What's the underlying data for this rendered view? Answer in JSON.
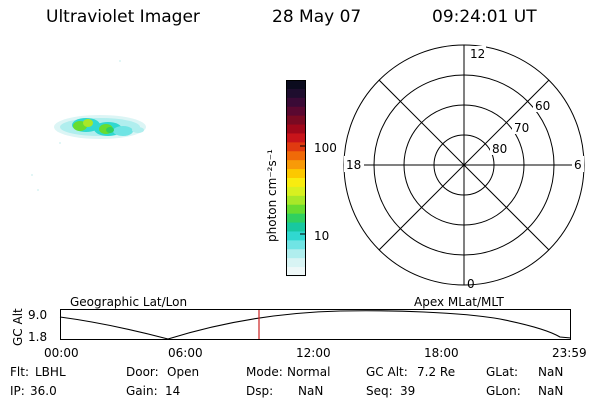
{
  "header": {
    "instrument": "Ultraviolet Imager",
    "date": "28 May 07",
    "time": "09:24:01 UT"
  },
  "colorbar": {
    "unit": "photon cm⁻²s⁻¹",
    "ticks": [
      "100",
      "10"
    ],
    "colors": [
      "#0b0b1e",
      "#1e0d2e",
      "#3a0a36",
      "#5a0830",
      "#7a0a22",
      "#a0081a",
      "#c8141a",
      "#e03a10",
      "#f06a08",
      "#f89a08",
      "#fcc800",
      "#f8ec10",
      "#d8f020",
      "#a8e828",
      "#68dc30",
      "#30d060",
      "#18c8a0",
      "#30d8d0",
      "#70e4e4",
      "#b0eeee",
      "#d8f4f4",
      "#eef8f8"
    ]
  },
  "polar_plot": {
    "mlt_labels": [
      "12",
      "6",
      "0",
      "18"
    ],
    "lat_labels": [
      "60",
      "70",
      "80"
    ]
  },
  "timeline": {
    "left_title": "Geographic Lat/Lon",
    "right_title": "Apex MLat/MLT",
    "y_axis_label": "GC Alt",
    "y_ticks": [
      "9.0",
      "1.8"
    ],
    "x_ticks": [
      "00:00",
      "06:00",
      "12:00",
      "18:00",
      "23:59"
    ],
    "current_time_marker": "09:24",
    "marker_color": "#cc2222"
  },
  "info": {
    "row1": [
      {
        "label": "Flt:",
        "value": "LBHL"
      },
      {
        "label": "Door:",
        "value": "Open"
      },
      {
        "label": "Mode:",
        "value": "Normal"
      },
      {
        "label": "GC Alt:",
        "value": "7.2 Re"
      },
      {
        "label": "GLat:",
        "value": "NaN"
      }
    ],
    "row2": [
      {
        "label": "IP:",
        "value": "36.0"
      },
      {
        "label": "Gain:",
        "value": "14"
      },
      {
        "label": "Dsp:",
        "value": "NaN"
      },
      {
        "label": "Seq:",
        "value": "39"
      },
      {
        "label": "GLon:",
        "value": "NaN"
      }
    ]
  }
}
